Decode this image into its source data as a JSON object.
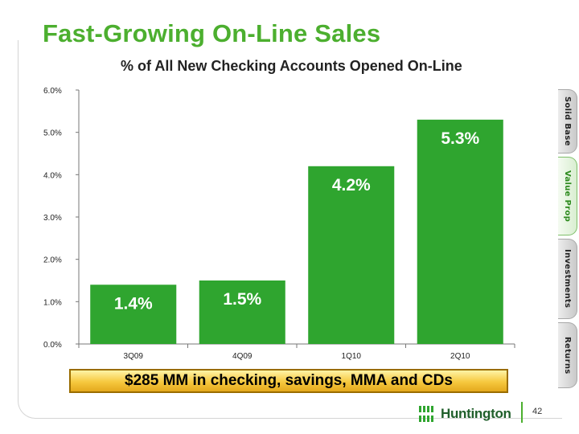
{
  "slide": {
    "title": "Fast-Growing On-Line Sales",
    "subtitle": "% of All New Checking Accounts Opened On-Line",
    "callout": "$285 MM in checking, savings, MMA and CDs",
    "page_number": "42",
    "logo_text": "Huntington"
  },
  "nav_tabs": [
    {
      "label": "Solid Base",
      "active": false
    },
    {
      "label": "Value Prop",
      "active": true
    },
    {
      "label": "Investments",
      "active": false
    },
    {
      "label": "Returns",
      "active": false
    }
  ],
  "colors": {
    "title": "#4caf2f",
    "bar": "#2fa52f",
    "callout_fill": "#f6c83e",
    "logo": "#1f5e2a"
  },
  "chart_data": {
    "type": "bar",
    "title": "% of All New Checking Accounts Opened On-Line",
    "categories": [
      "3Q09",
      "4Q09",
      "1Q10",
      "2Q10"
    ],
    "values": [
      1.4,
      1.5,
      4.2,
      5.3
    ],
    "value_labels": [
      "1.4%",
      "1.5%",
      "4.2%",
      "5.3%"
    ],
    "yticks": [
      0,
      1,
      2,
      3,
      4,
      5,
      6
    ],
    "ytick_labels": [
      "0.0%",
      "1.0%",
      "2.0%",
      "3.0%",
      "4.0%",
      "5.0%",
      "6.0%"
    ],
    "ylim": [
      0,
      6
    ],
    "xlabel": "",
    "ylabel": "",
    "grid": false,
    "legend": "none"
  }
}
